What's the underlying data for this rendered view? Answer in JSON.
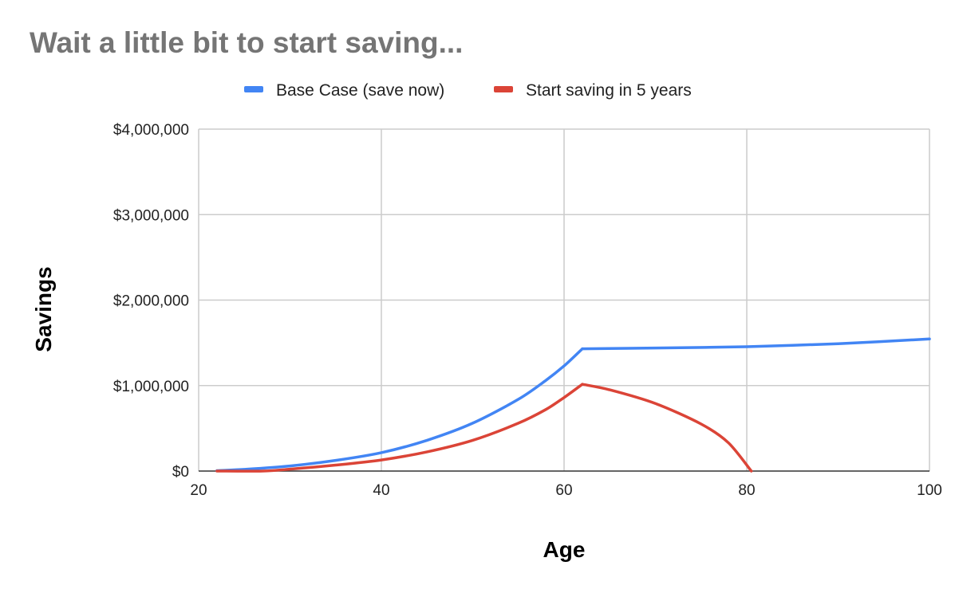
{
  "chart_data": {
    "type": "line",
    "title": "Wait a little bit to start saving...",
    "xlabel": "Age",
    "ylabel": "Savings",
    "xlim": [
      20,
      100
    ],
    "ylim": [
      0,
      4000000
    ],
    "x_ticks": [
      20,
      40,
      60,
      80,
      100
    ],
    "x_tick_labels": [
      "20",
      "40",
      "60",
      "80",
      "100"
    ],
    "y_ticks": [
      0,
      1000000,
      2000000,
      3000000,
      4000000
    ],
    "y_tick_labels": [
      "$0",
      "$1,000,000",
      "$2,000,000",
      "$3,000,000",
      "$4,000,000"
    ],
    "grid": true,
    "legend_position": "top",
    "series": [
      {
        "name": "Base Case (save now)",
        "color": "#4285f4",
        "x": [
          22,
          25,
          30,
          35,
          40,
          45,
          50,
          55,
          58,
          60,
          62,
          70,
          80,
          90,
          100
        ],
        "y": [
          5000,
          20000,
          60000,
          125000,
          215000,
          360000,
          560000,
          840000,
          1060000,
          1230000,
          1430000,
          1440000,
          1455000,
          1490000,
          1545000
        ]
      },
      {
        "name": "Start saving in 5 years",
        "color": "#db4437",
        "x": [
          22,
          27,
          30,
          35,
          40,
          45,
          50,
          55,
          58,
          60,
          62,
          65,
          70,
          75,
          78,
          80.5
        ],
        "y": [
          0,
          0,
          22000,
          70000,
          130000,
          225000,
          360000,
          560000,
          720000,
          860000,
          1015000,
          950000,
          790000,
          550000,
          330000,
          0
        ]
      }
    ]
  }
}
